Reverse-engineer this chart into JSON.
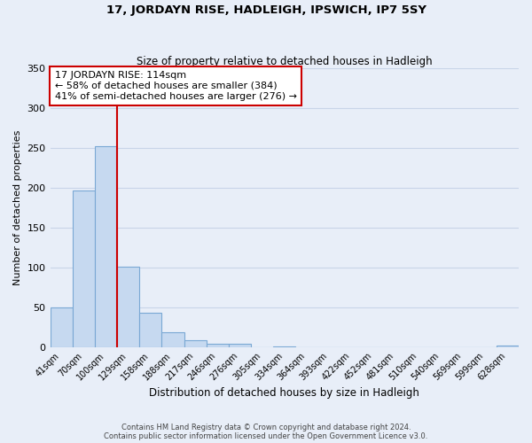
{
  "title": "17, JORDAYN RISE, HADLEIGH, IPSWICH, IP7 5SY",
  "subtitle": "Size of property relative to detached houses in Hadleigh",
  "xlabel": "Distribution of detached houses by size in Hadleigh",
  "ylabel": "Number of detached properties",
  "bar_values": [
    50,
    197,
    252,
    101,
    43,
    19,
    9,
    4,
    4,
    0,
    1,
    0,
    0,
    0,
    0,
    0,
    0,
    0,
    0,
    0,
    2
  ],
  "bar_labels": [
    "41sqm",
    "70sqm",
    "100sqm",
    "129sqm",
    "158sqm",
    "188sqm",
    "217sqm",
    "246sqm",
    "276sqm",
    "305sqm",
    "334sqm",
    "364sqm",
    "393sqm",
    "422sqm",
    "452sqm",
    "481sqm",
    "510sqm",
    "540sqm",
    "569sqm",
    "599sqm",
    "628sqm"
  ],
  "bar_color": "#c6d9f0",
  "bar_edge_color": "#7aa8d4",
  "vline_x": 3.0,
  "vline_color": "#cc0000",
  "annotation_box_text": "17 JORDAYN RISE: 114sqm\n← 58% of detached houses are smaller (384)\n41% of semi-detached houses are larger (276) →",
  "annotation_box_color": "#cc0000",
  "ylim": [
    0,
    350
  ],
  "yticks": [
    0,
    50,
    100,
    150,
    200,
    250,
    300,
    350
  ],
  "footer1": "Contains HM Land Registry data © Crown copyright and database right 2024.",
  "footer2": "Contains public sector information licensed under the Open Government Licence v3.0.",
  "bg_color": "#e8eef8",
  "plot_bg_color": "#e8eef8",
  "grid_color": "#c8d4e8",
  "title_fontsize": 9.5,
  "subtitle_fontsize": 8.5
}
